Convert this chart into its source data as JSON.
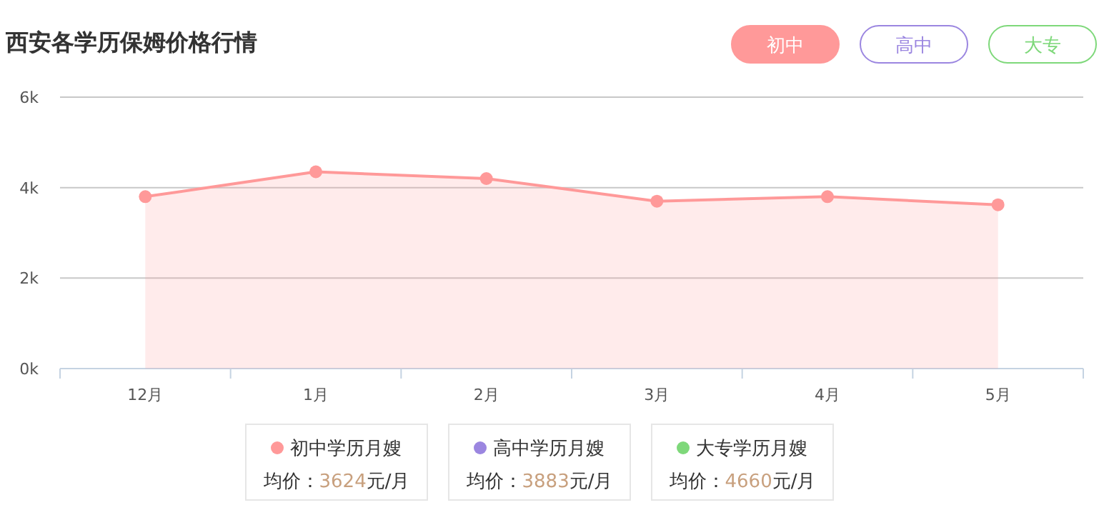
{
  "chart_data": {
    "type": "area",
    "title": "西安各学历保姆价格行情",
    "categories": [
      "12月",
      "1月",
      "2月",
      "3月",
      "4月",
      "5月"
    ],
    "series": [
      {
        "name": "初中学历月嫂",
        "color": "#ff9999",
        "values": [
          3.8,
          4.35,
          4.2,
          3.7,
          3.8,
          3.62
        ]
      },
      {
        "name": "高中学历月嫂",
        "color": "#9b86e0",
        "values": [
          null,
          null,
          null,
          null,
          null,
          null
        ]
      },
      {
        "name": "大专学历月嫂",
        "color": "#7ed87a",
        "values": [
          null,
          null,
          null,
          null,
          null,
          null
        ]
      }
    ],
    "ylim": [
      0,
      6
    ],
    "yticks": [
      {
        "value": 0,
        "label": "0k"
      },
      {
        "value": 2,
        "label": "2k"
      },
      {
        "value": 4,
        "label": "4k"
      },
      {
        "value": 6,
        "label": "6k"
      }
    ],
    "grid": "y",
    "marker": "circle",
    "legend": "bottom",
    "annotations": [
      "初中",
      "高中",
      "大专",
      "均价：3624元/月",
      "均价：3883元/月",
      "均价：4660元/月"
    ]
  }
}
